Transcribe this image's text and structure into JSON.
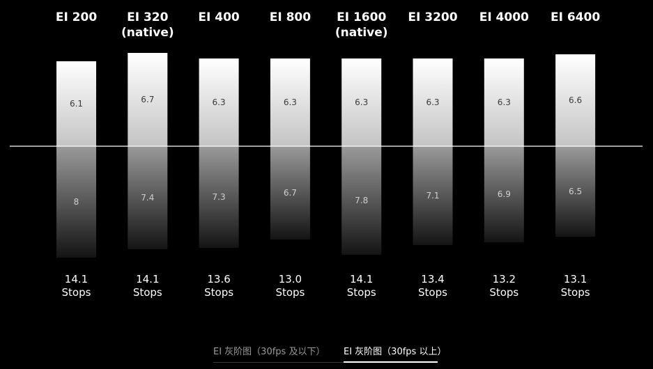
{
  "chart_data": {
    "type": "bar",
    "title": "",
    "categories": [
      [
        "EI 200"
      ],
      [
        "EI 320",
        "(native)"
      ],
      [
        "EI 400"
      ],
      [
        "EI 800"
      ],
      [
        "EI 1600",
        "(native)"
      ],
      [
        "EI 3200"
      ],
      [
        "EI 4000"
      ],
      [
        "EI 6400"
      ]
    ],
    "series": [
      {
        "values": [
          6.1,
          6.7,
          6.3,
          6.3,
          6.3,
          6.3,
          6.3,
          6.6
        ]
      },
      {
        "values": [
          8,
          7.4,
          7.3,
          6.7,
          7.8,
          7.1,
          6.9,
          6.5
        ]
      }
    ],
    "totals": [
      [
        "14.1",
        "Stops"
      ],
      [
        "14.1",
        "Stops"
      ],
      [
        "13.6",
        "Stops"
      ],
      [
        "13.0",
        "Stops"
      ],
      [
        "14.1",
        "Stops"
      ],
      [
        "13.4",
        "Stops"
      ],
      [
        "13.2",
        "Stops"
      ],
      [
        "13.1",
        "Stops"
      ]
    ],
    "baseline": "middle-grey",
    "grid": false,
    "legend": "none"
  },
  "tabs": [
    {
      "label": "EI 灰阶图（30fps 及以下）",
      "active": false
    },
    {
      "label": "EI 灰阶图（30fps 以上）",
      "active": true
    }
  ],
  "colors": {
    "background": "#000000",
    "text": "#ffffff",
    "label_text": "#3a3a3a",
    "inactive_tab": "#9a9a9a"
  }
}
